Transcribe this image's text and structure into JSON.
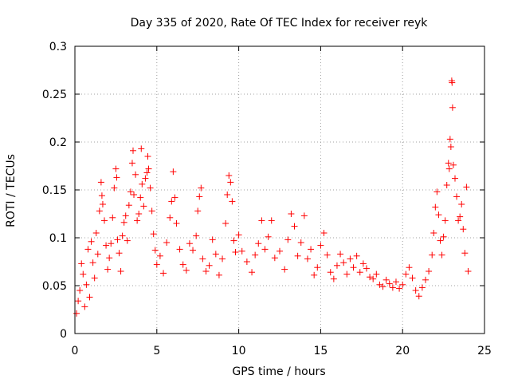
{
  "chart_data": {
    "type": "scatter",
    "title": "Day 335 of 2020, Rate Of TEC Index for receiver reyk",
    "xlabel": "GPS time / hours",
    "ylabel": "ROTI / TECUs",
    "xlim": [
      0,
      25
    ],
    "ylim": [
      0,
      0.3
    ],
    "x_ticks": [
      0,
      5,
      10,
      15,
      20,
      25
    ],
    "x_tick_labels": [
      "0",
      "5",
      "10",
      "15",
      "20",
      "25"
    ],
    "y_ticks": [
      0,
      0.05,
      0.1,
      0.15,
      0.2,
      0.25,
      0.3
    ],
    "y_tick_labels": [
      "0",
      "0.05",
      "0.1",
      "0.15",
      "0.2",
      "0.25",
      "0.3"
    ],
    "grid": true,
    "marker": "plus",
    "color": "#ff0000",
    "points": [
      [
        0.1,
        0.021
      ],
      [
        0.2,
        0.034
      ],
      [
        0.3,
        0.045
      ],
      [
        0.4,
        0.073
      ],
      [
        0.5,
        0.062
      ],
      [
        0.6,
        0.028
      ],
      [
        0.7,
        0.051
      ],
      [
        0.8,
        0.088
      ],
      [
        0.9,
        0.038
      ],
      [
        1.0,
        0.096
      ],
      [
        1.1,
        0.074
      ],
      [
        1.2,
        0.058
      ],
      [
        1.3,
        0.105
      ],
      [
        1.4,
        0.083
      ],
      [
        1.5,
        0.128
      ],
      [
        1.6,
        0.158
      ],
      [
        1.65,
        0.144
      ],
      [
        1.7,
        0.135
      ],
      [
        1.8,
        0.118
      ],
      [
        1.9,
        0.092
      ],
      [
        2.0,
        0.067
      ],
      [
        2.1,
        0.079
      ],
      [
        2.2,
        0.094
      ],
      [
        2.3,
        0.121
      ],
      [
        2.4,
        0.152
      ],
      [
        2.5,
        0.172
      ],
      [
        2.55,
        0.163
      ],
      [
        2.6,
        0.098
      ],
      [
        2.7,
        0.084
      ],
      [
        2.8,
        0.065
      ],
      [
        2.9,
        0.102
      ],
      [
        3.0,
        0.116
      ],
      [
        3.1,
        0.123
      ],
      [
        3.2,
        0.097
      ],
      [
        3.3,
        0.134
      ],
      [
        3.4,
        0.148
      ],
      [
        3.5,
        0.178
      ],
      [
        3.55,
        0.191
      ],
      [
        3.6,
        0.145
      ],
      [
        3.7,
        0.166
      ],
      [
        3.8,
        0.118
      ],
      [
        3.9,
        0.125
      ],
      [
        4.0,
        0.142
      ],
      [
        4.05,
        0.193
      ],
      [
        4.1,
        0.156
      ],
      [
        4.2,
        0.133
      ],
      [
        4.3,
        0.162
      ],
      [
        4.4,
        0.168
      ],
      [
        4.45,
        0.185
      ],
      [
        4.5,
        0.172
      ],
      [
        4.6,
        0.152
      ],
      [
        4.7,
        0.128
      ],
      [
        4.8,
        0.104
      ],
      [
        4.9,
        0.087
      ],
      [
        5.0,
        0.072
      ],
      [
        5.2,
        0.081
      ],
      [
        5.4,
        0.063
      ],
      [
        5.6,
        0.095
      ],
      [
        5.8,
        0.121
      ],
      [
        5.9,
        0.138
      ],
      [
        6.0,
        0.169
      ],
      [
        6.1,
        0.142
      ],
      [
        6.2,
        0.115
      ],
      [
        6.4,
        0.088
      ],
      [
        6.6,
        0.072
      ],
      [
        6.8,
        0.066
      ],
      [
        7.0,
        0.094
      ],
      [
        7.2,
        0.087
      ],
      [
        7.4,
        0.102
      ],
      [
        7.5,
        0.128
      ],
      [
        7.6,
        0.143
      ],
      [
        7.7,
        0.152
      ],
      [
        7.8,
        0.078
      ],
      [
        8.0,
        0.065
      ],
      [
        8.2,
        0.071
      ],
      [
        8.4,
        0.098
      ],
      [
        8.6,
        0.083
      ],
      [
        8.8,
        0.061
      ],
      [
        9.0,
        0.078
      ],
      [
        9.2,
        0.115
      ],
      [
        9.3,
        0.145
      ],
      [
        9.4,
        0.165
      ],
      [
        9.5,
        0.158
      ],
      [
        9.6,
        0.138
      ],
      [
        9.7,
        0.097
      ],
      [
        9.8,
        0.085
      ],
      [
        10.0,
        0.103
      ],
      [
        10.2,
        0.086
      ],
      [
        10.5,
        0.075
      ],
      [
        10.8,
        0.064
      ],
      [
        11.0,
        0.082
      ],
      [
        11.2,
        0.094
      ],
      [
        11.4,
        0.118
      ],
      [
        11.6,
        0.088
      ],
      [
        11.8,
        0.101
      ],
      [
        12.0,
        0.118
      ],
      [
        12.2,
        0.079
      ],
      [
        12.5,
        0.086
      ],
      [
        12.8,
        0.067
      ],
      [
        13.0,
        0.098
      ],
      [
        13.2,
        0.125
      ],
      [
        13.4,
        0.112
      ],
      [
        13.6,
        0.081
      ],
      [
        13.8,
        0.095
      ],
      [
        14.0,
        0.123
      ],
      [
        14.2,
        0.078
      ],
      [
        14.4,
        0.088
      ],
      [
        14.6,
        0.061
      ],
      [
        14.8,
        0.069
      ],
      [
        15.0,
        0.092
      ],
      [
        15.2,
        0.105
      ],
      [
        15.4,
        0.082
      ],
      [
        15.6,
        0.064
      ],
      [
        15.8,
        0.057
      ],
      [
        16.0,
        0.071
      ],
      [
        16.2,
        0.083
      ],
      [
        16.4,
        0.074
      ],
      [
        16.6,
        0.062
      ],
      [
        16.8,
        0.078
      ],
      [
        17.0,
        0.069
      ],
      [
        17.2,
        0.081
      ],
      [
        17.4,
        0.064
      ],
      [
        17.6,
        0.073
      ],
      [
        17.8,
        0.068
      ],
      [
        18.0,
        0.059
      ],
      [
        18.2,
        0.057
      ],
      [
        18.4,
        0.062
      ],
      [
        18.6,
        0.051
      ],
      [
        18.8,
        0.049
      ],
      [
        19.0,
        0.056
      ],
      [
        19.2,
        0.052
      ],
      [
        19.4,
        0.048
      ],
      [
        19.6,
        0.054
      ],
      [
        19.8,
        0.047
      ],
      [
        20.0,
        0.051
      ],
      [
        20.2,
        0.062
      ],
      [
        20.4,
        0.069
      ],
      [
        20.6,
        0.058
      ],
      [
        20.8,
        0.045
      ],
      [
        21.0,
        0.039
      ],
      [
        21.2,
        0.048
      ],
      [
        21.4,
        0.056
      ],
      [
        21.6,
        0.065
      ],
      [
        21.8,
        0.082
      ],
      [
        21.9,
        0.105
      ],
      [
        22.0,
        0.132
      ],
      [
        22.1,
        0.148
      ],
      [
        22.2,
        0.124
      ],
      [
        22.3,
        0.097
      ],
      [
        22.4,
        0.082
      ],
      [
        22.5,
        0.101
      ],
      [
        22.6,
        0.118
      ],
      [
        22.7,
        0.155
      ],
      [
        22.8,
        0.178
      ],
      [
        22.85,
        0.172
      ],
      [
        22.9,
        0.203
      ],
      [
        22.95,
        0.195
      ],
      [
        23.0,
        0.264
      ],
      [
        23.02,
        0.262
      ],
      [
        23.05,
        0.236
      ],
      [
        23.1,
        0.176
      ],
      [
        23.2,
        0.162
      ],
      [
        23.3,
        0.143
      ],
      [
        23.4,
        0.118
      ],
      [
        23.5,
        0.122
      ],
      [
        23.6,
        0.135
      ],
      [
        23.7,
        0.109
      ],
      [
        23.8,
        0.084
      ],
      [
        23.9,
        0.153
      ],
      [
        24.0,
        0.065
      ]
    ]
  }
}
